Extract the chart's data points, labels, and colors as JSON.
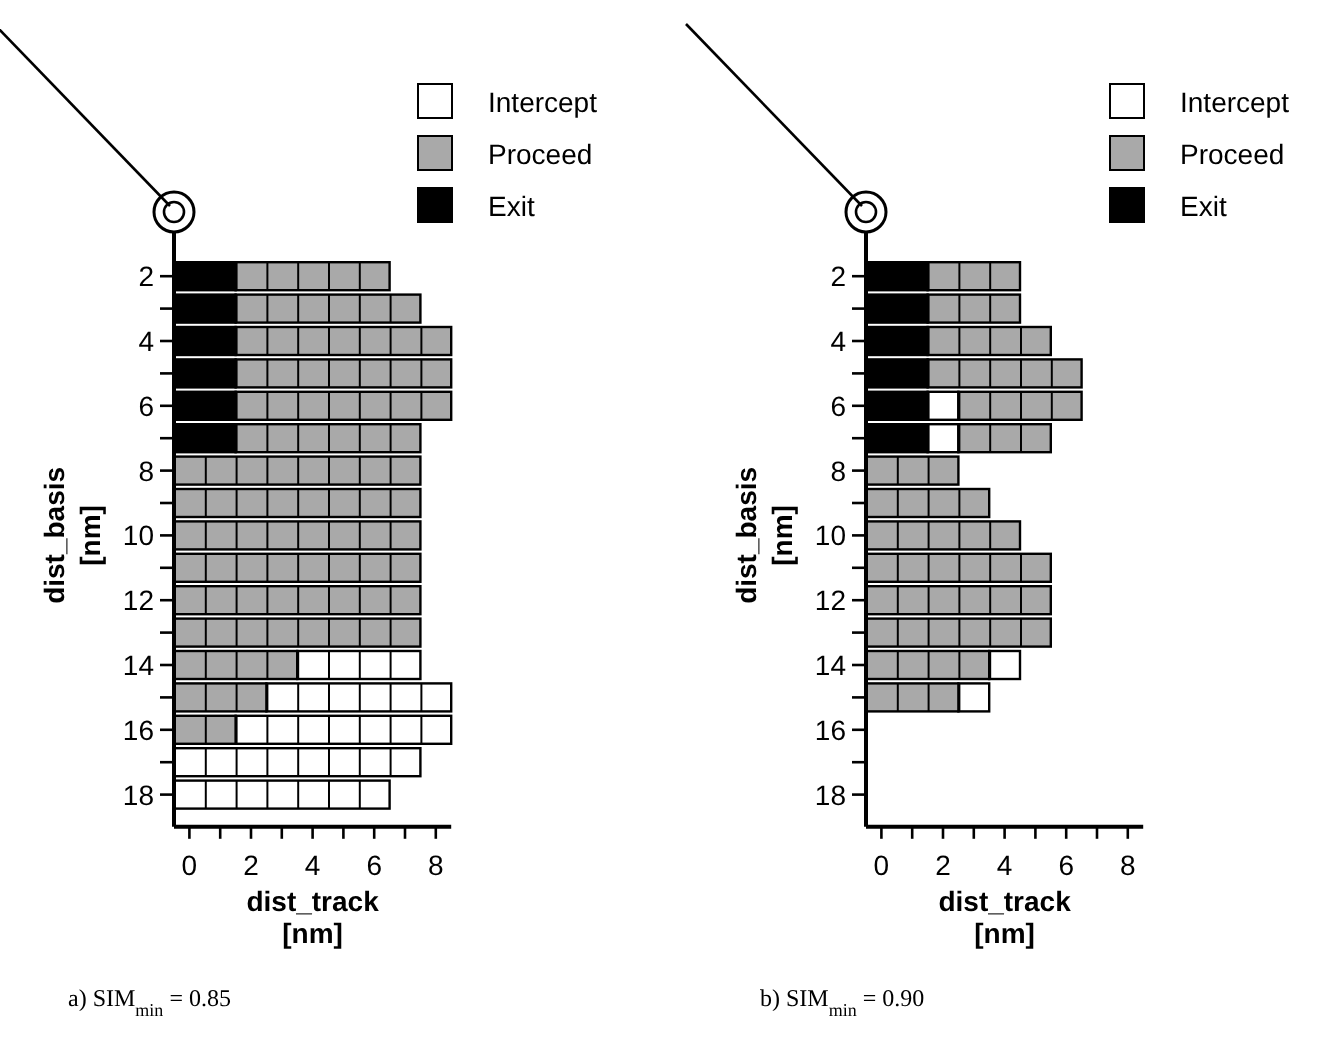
{
  "chart_data": [
    {
      "type": "bar",
      "orientation": "horizontal",
      "title": "a) SIM$_{min}$ = 0.85",
      "xlabel": "dist_track\n[nm]",
      "ylabel": "dist_basis\n[nm]",
      "legend": "top right",
      "categories": [
        "2",
        null,
        "4",
        null,
        "6",
        null,
        "8",
        null,
        "10",
        null,
        "12",
        null,
        "14",
        null,
        "16",
        null,
        "18"
      ],
      "xlim": [
        -0.5,
        8.5
      ],
      "xticks": [
        0,
        {
          "value": 1,
          "label": null
        },
        2,
        {
          "value": 3,
          "label": null
        },
        4,
        {
          "value": 5,
          "label": null
        },
        6,
        {
          "value": 7,
          "label": null
        },
        8
      ],
      "series": [
        {
          "name": "Intercept",
          "color": "#ffffff",
          "values": [
            null,
            null,
            null,
            null,
            null,
            null,
            null,
            null,
            null,
            null,
            null,
            null,
            4,
            6,
            7,
            8,
            7
          ],
          "base": [
            null,
            null,
            null,
            null,
            null,
            null,
            null,
            null,
            null,
            null,
            null,
            null,
            3.5,
            2.5,
            1.5,
            -0.5,
            -0.5
          ]
        },
        {
          "name": "Proceed",
          "color": "#a9a9a9",
          "values": [
            5,
            6,
            7,
            7,
            7,
            6,
            8,
            8,
            8,
            8,
            8,
            8,
            4,
            3,
            2,
            null,
            null
          ],
          "base": [
            1.5,
            1.5,
            1.5,
            1.5,
            1.5,
            1.5,
            -0.5,
            -0.5,
            -0.5,
            -0.5,
            -0.5,
            -0.5,
            -0.5,
            -0.5,
            -0.5,
            null,
            null
          ]
        },
        {
          "name": "Exit",
          "color": "#000000",
          "values": [
            2,
            2,
            2,
            2,
            2,
            2,
            null,
            null,
            null,
            null,
            null,
            null,
            null,
            null,
            null,
            null,
            null
          ],
          "base": [
            -0.5,
            -0.5,
            -0.5,
            -0.5,
            -0.5,
            -0.5,
            null,
            null,
            null,
            null,
            null,
            null,
            null,
            null,
            null,
            null,
            null
          ]
        }
      ]
    },
    {
      "type": "bar",
      "orientation": "horizontal",
      "title": "b) SIM$_{min}$ = 0.90",
      "xlabel": "dist_track\n[nm]",
      "ylabel": "dist_basis\n[nm]",
      "legend": "top right",
      "categories": [
        "2",
        null,
        "4",
        null,
        "6",
        null,
        "8",
        null,
        "10",
        null,
        "12",
        null,
        "14",
        null,
        "16",
        null,
        "18"
      ],
      "xlim": [
        -0.5,
        8.5
      ],
      "xticks": [
        0,
        {
          "value": 1,
          "label": null
        },
        2,
        {
          "value": 3,
          "label": null
        },
        4,
        {
          "value": 5,
          "label": null
        },
        6,
        {
          "value": 7,
          "label": null
        },
        8
      ],
      "series": [
        {
          "name": "Intercept",
          "color": "#ffffff",
          "values": [
            null,
            null,
            null,
            null,
            1,
            1,
            null,
            null,
            null,
            null,
            null,
            null,
            1,
            1,
            null,
            null,
            null
          ],
          "base": [
            null,
            null,
            null,
            null,
            1.5,
            1.5,
            null,
            null,
            null,
            null,
            null,
            null,
            3.5,
            2.5,
            null,
            null,
            null
          ]
        },
        {
          "name": "Proceed",
          "color": "#a9a9a9",
          "values": [
            3,
            3,
            4,
            5,
            4,
            3,
            3,
            4,
            5,
            6,
            6,
            6,
            4,
            3,
            null,
            null,
            null
          ],
          "base": [
            1.5,
            1.5,
            1.5,
            1.5,
            2.5,
            2.5,
            -0.5,
            -0.5,
            -0.5,
            -0.5,
            -0.5,
            -0.5,
            -0.5,
            -0.5,
            null,
            null,
            null
          ]
        },
        {
          "name": "Exit",
          "color": "#000000",
          "values": [
            2,
            2,
            2,
            2,
            2,
            2,
            null,
            null,
            null,
            null,
            null,
            null,
            null,
            null,
            null,
            null,
            null
          ],
          "base": [
            -0.5,
            -0.5,
            -0.5,
            -0.5,
            -0.5,
            -0.5,
            null,
            null,
            null,
            null,
            null,
            null,
            null,
            null,
            null,
            null,
            null
          ]
        }
      ]
    }
  ]
}
